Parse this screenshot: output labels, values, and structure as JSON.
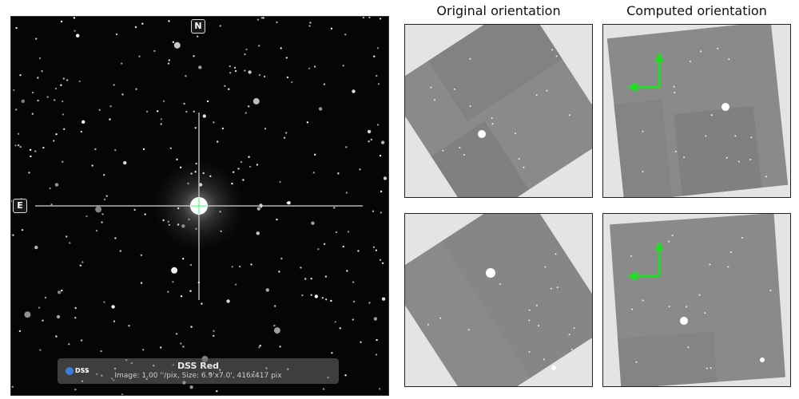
{
  "sky_view": {
    "compass_north": "N",
    "compass_east": "E",
    "survey_logo": "DSS",
    "survey_name": "DSS Red",
    "image_info": "Image: 1.00 ''/pix, Size: 6.9'x7.0', 416x417 pix"
  },
  "columns": {
    "original_header": "Original orientation",
    "computed_header": "Computed orientation"
  },
  "colors": {
    "compass_arrow": "#22dd22",
    "crosshair": "#33ff66",
    "thumb_background": "#e4e4e4",
    "field_gray": "#8a8a8a"
  }
}
